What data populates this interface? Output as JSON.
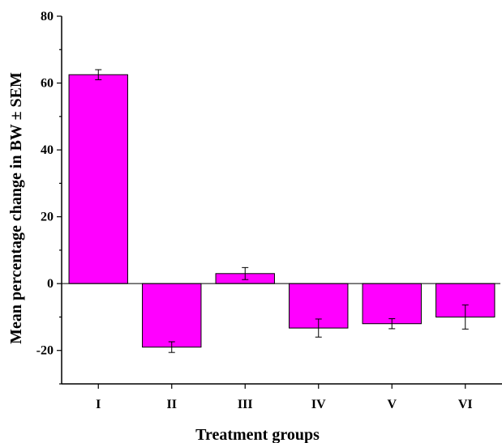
{
  "chart_data": {
    "type": "bar",
    "title": "",
    "xlabel": "Treatment groups",
    "ylabel": "Mean percentage change in BW ± SEM",
    "categories": [
      "I",
      "II",
      "III",
      "IV",
      "V",
      "VI"
    ],
    "values": [
      62.5,
      -19.0,
      3.0,
      -13.3,
      -12.0,
      -10.0
    ],
    "errors": [
      1.5,
      1.6,
      1.8,
      2.7,
      1.5,
      3.6
    ],
    "ylim": [
      -30,
      80
    ],
    "yticks": [
      -20,
      0,
      20,
      40,
      60,
      80
    ],
    "grid": false,
    "legend": "none",
    "bar_color": "#ff00ff",
    "edge_color": "#000000"
  }
}
